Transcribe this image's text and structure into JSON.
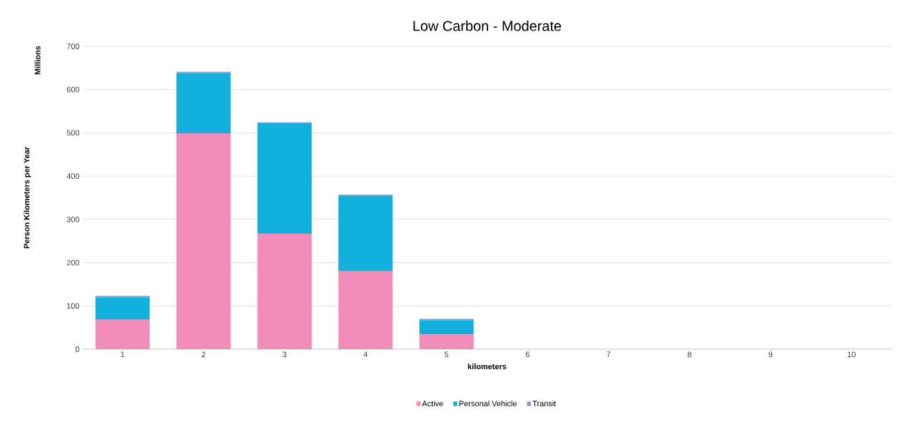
{
  "chart_data": {
    "type": "bar",
    "stacked": true,
    "title": "Low Carbon - Moderate",
    "xlabel": "kilometers",
    "ylabel": "Person Kilometers per Year",
    "annotations": [
      "Millions"
    ],
    "categories": [
      "1",
      "2",
      "3",
      "4",
      "5",
      "6",
      "7",
      "8",
      "9",
      "10"
    ],
    "series": [
      {
        "name": "Active",
        "color": "#f28cb8",
        "values": [
          68,
          499,
          267,
          180,
          34,
          0,
          0,
          0,
          0,
          0
        ]
      },
      {
        "name": "Personal Vehicle",
        "color": "#12b0dc",
        "values": [
          52,
          139,
          255,
          174,
          33,
          0,
          0,
          0,
          0,
          0
        ]
      },
      {
        "name": "Transit",
        "color": "#a18fd0",
        "values": [
          3,
          3,
          2,
          3,
          3,
          0,
          0,
          0,
          0,
          0
        ]
      }
    ],
    "ylim": [
      0,
      700
    ],
    "yticks": [
      0,
      100,
      200,
      300,
      400,
      500,
      600,
      700
    ],
    "grid": "y",
    "legend": "bottom"
  }
}
